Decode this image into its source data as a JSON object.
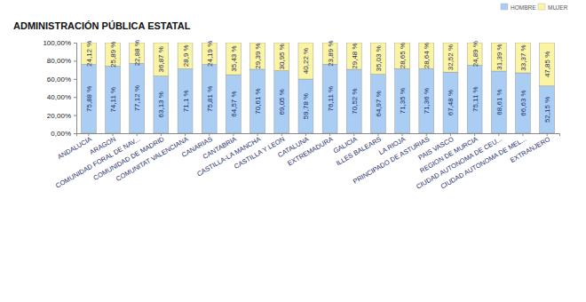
{
  "chart_data": {
    "type": "bar",
    "title": "ADMINISTRACIÓN PÚBLICA ESTATAL",
    "categories": [
      "ANDALUCIA",
      "ARAGON",
      "COMUNIDAD FORAL DE NAV...",
      "COMUNIDAD DE MADRID",
      "COMUNITAT VALENCIANA",
      "CANARIAS",
      "CANTABRIA",
      "CASTILLA-LA MANCHA",
      "CASTILLA Y LEON",
      "CATALUNA",
      "EXTREMADURA",
      "GALICIA",
      "ILLES BALEARS",
      "LA RIOJA",
      "PRINCIPADO DE ASTURIAS",
      "PAIS VASCO",
      "REGION DE MURCIA",
      "CIUDAD AUTONOMA DE CEU...",
      "CIUDAD AUTONOMA DE MEL...",
      "EXTRANJERO"
    ],
    "series": [
      {
        "name": "HOMBRE",
        "color": "#a9cdf3",
        "values": [
          75.88,
          74.11,
          77.12,
          63.13,
          71.1,
          75.81,
          64.57,
          70.61,
          69.05,
          59.78,
          76.11,
          70.52,
          64.97,
          71.35,
          71.36,
          67.48,
          75.11,
          68.61,
          66.63,
          52.15
        ],
        "value_labels": [
          "75,88 %",
          "74,11 %",
          "77,12 %",
          "63,13 %",
          "71,1 %",
          "75,81 %",
          "64,57 %",
          "70,61 %",
          "69,05 %",
          "59,78 %",
          "76,11 %",
          "70,52 %",
          "64,97 %",
          "71,35 %",
          "71,36 %",
          "67,48 %",
          "75,11 %",
          "68,61 %",
          "66,63 %",
          "52,15 %"
        ]
      },
      {
        "name": "MUJER",
        "color": "#fbf4a2",
        "values": [
          24.12,
          25.89,
          22.88,
          36.87,
          28.9,
          24.19,
          35.43,
          29.39,
          30.95,
          40.22,
          23.89,
          29.48,
          35.03,
          28.65,
          28.64,
          32.52,
          24.89,
          31.39,
          33.37,
          47.85
        ],
        "value_labels": [
          "24,12 %",
          "25,89 %",
          "22,88 %",
          "36,87 %",
          "28,9 %",
          "24,19 %",
          "35,43 %",
          "29,39 %",
          "30,95 %",
          "40,22 %",
          "23,89 %",
          "29,48 %",
          "35,03 %",
          "28,65 %",
          "28,64 %",
          "32,52 %",
          "24,89 %",
          "31,39 %",
          "33,37 %",
          "47,85 %"
        ]
      }
    ],
    "ylim": [
      0,
      100
    ],
    "yticks": [
      {
        "value": 0,
        "label": "0,00%"
      },
      {
        "value": 20,
        "label": "20,00%"
      },
      {
        "value": 40,
        "label": "40,00%"
      },
      {
        "value": 60,
        "label": "60,00%"
      },
      {
        "value": 80,
        "label": "80,00%"
      },
      {
        "value": 100,
        "label": "100,00%"
      }
    ],
    "stacked": true,
    "data_labels": true,
    "legend": "top-right",
    "grid": false
  }
}
